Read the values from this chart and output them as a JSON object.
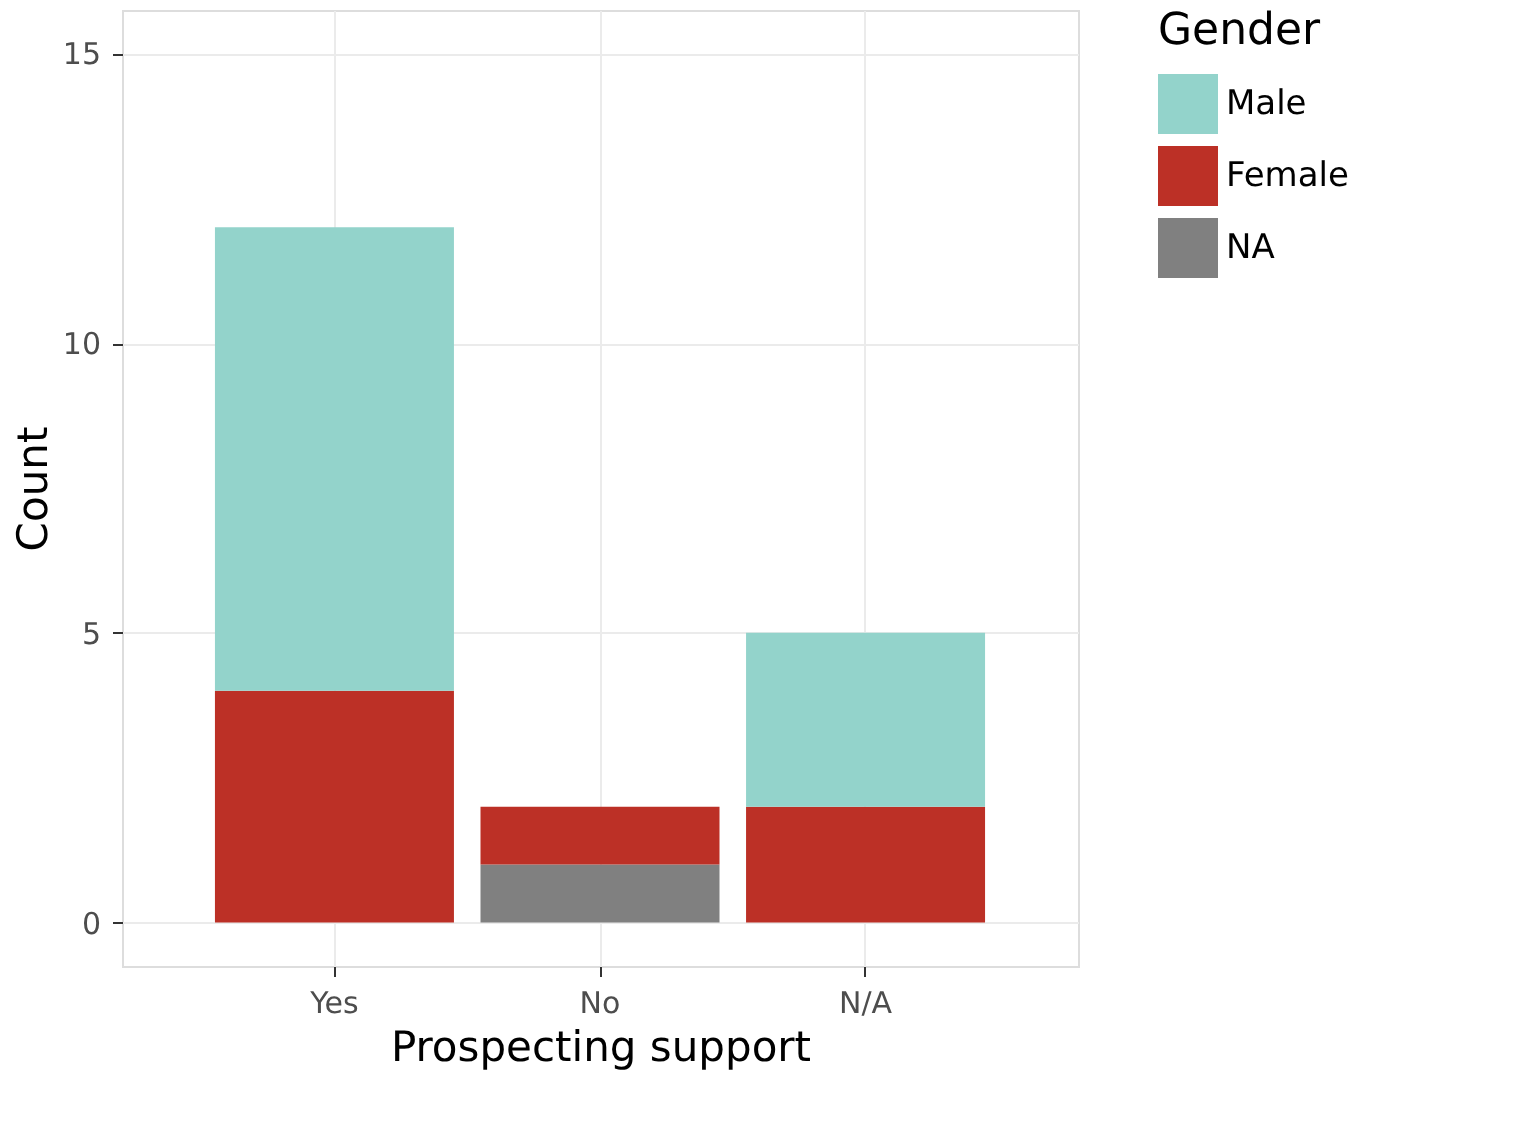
{
  "chart_data": {
    "type": "bar",
    "stacked": true,
    "xlabel": "Prospecting support",
    "ylabel": "Count",
    "legend_title": "Gender",
    "legend": "right",
    "grid": true,
    "categories": [
      "Yes",
      "No",
      "N/A"
    ],
    "series": [
      {
        "name": "NA",
        "color": "#808080",
        "values": [
          0,
          1,
          0
        ]
      },
      {
        "name": "Female",
        "color": "#bc3026",
        "values": [
          4,
          1,
          2
        ]
      },
      {
        "name": "Male",
        "color": "#93d3cb",
        "values": [
          8,
          0,
          3
        ]
      }
    ],
    "ylim": [
      -0.75,
      15.75
    ],
    "yticks": [
      0,
      5,
      10,
      15
    ]
  }
}
